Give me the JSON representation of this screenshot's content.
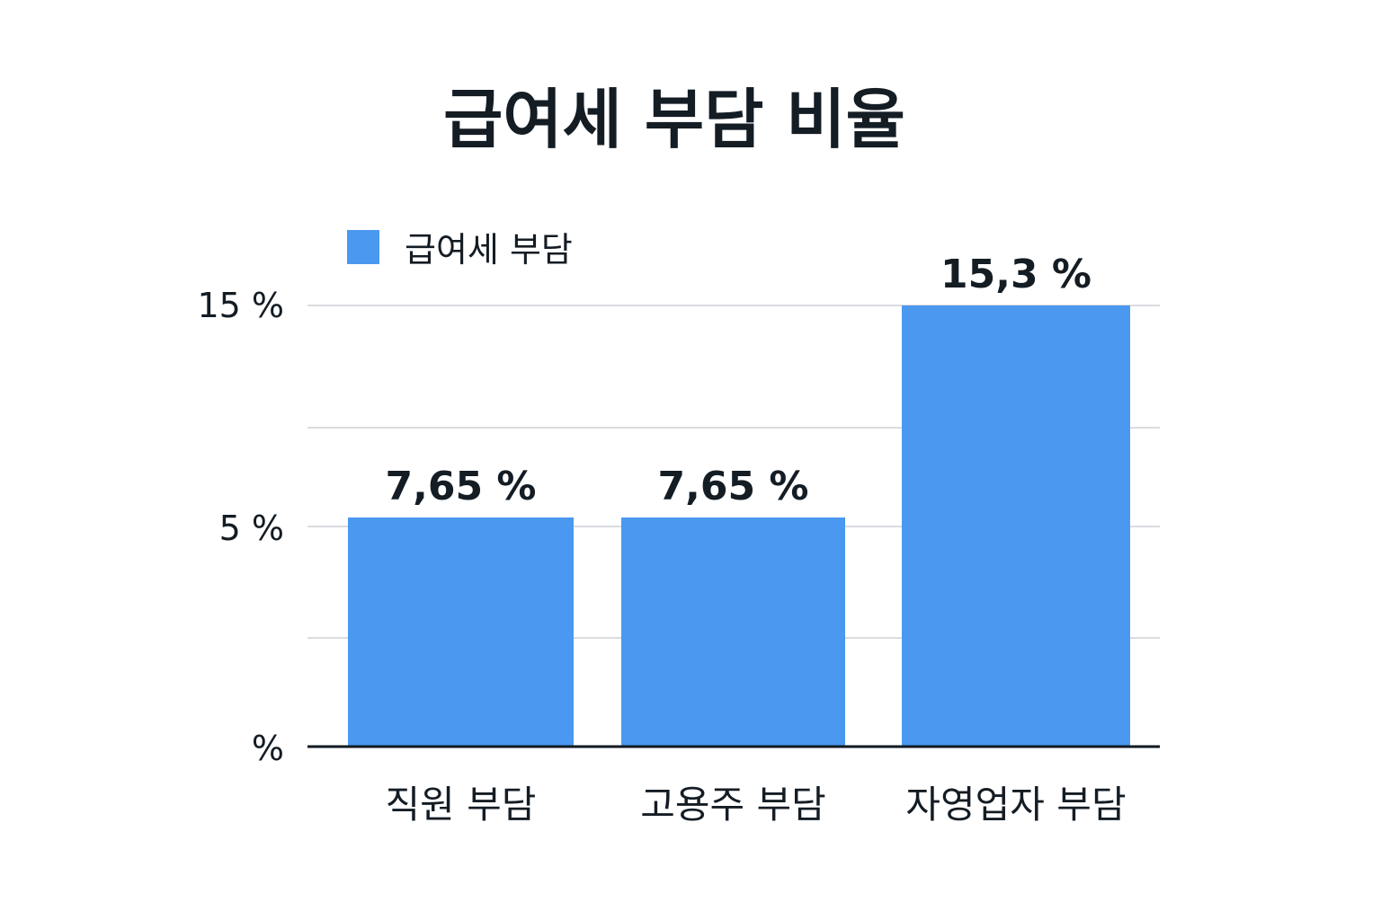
{
  "chart_data": {
    "type": "bar",
    "title": "급여세 부담 비율",
    "legend": {
      "label": "급여세 부담",
      "position": "top-left"
    },
    "categories": [
      "직원 부담",
      "고용주 부담",
      "자영업자 부담"
    ],
    "series": [
      {
        "name": "급여세 부담",
        "values": [
          7.65,
          7.65,
          15.3
        ]
      }
    ],
    "data_labels": [
      "7,65 %",
      "7,65 %",
      "15,3 %"
    ],
    "y_ticks": [
      {
        "value": 0,
        "label": "%"
      },
      {
        "value": 5,
        "label": "5 %"
      },
      {
        "value": 15,
        "label": "15 %"
      }
    ],
    "grid": true,
    "colors": {
      "bar": "#4a98ef",
      "grid": "#d9dcdf",
      "axis": "#111a22",
      "text": "#141c24"
    }
  }
}
